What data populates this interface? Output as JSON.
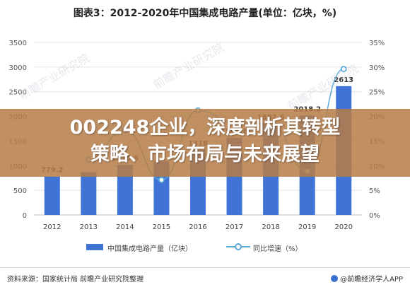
{
  "chart_data": {
    "type": "bar",
    "title": "图表3：2012-2020年中国集成电路产量(单位：亿块，%)",
    "categories": [
      "2012",
      "2013",
      "2014",
      "2015",
      "2016",
      "2017",
      "2018",
      "2019",
      "2020"
    ],
    "series": [
      {
        "name": "中国集成电路产量（亿块）",
        "type": "bar",
        "axis": "left",
        "color": "#3f73d6",
        "values": [
          779.2,
          866.5,
          1015.5,
          1087.2,
          1318.0,
          1564.6,
          1852.6,
          2018.2,
          2613
        ],
        "labels": [
          "779.2",
          "",
          "1015.5",
          "",
          "1318",
          "1564.6",
          "1852.6",
          "2018.2",
          "2613"
        ]
      },
      {
        "name": "同比增速（%）",
        "type": "line",
        "axis": "right",
        "color": "#5aa8d8",
        "values": [
          null,
          11.2,
          17.2,
          7.1,
          21.2,
          18.7,
          18.4,
          8.9,
          29.6
        ]
      }
    ],
    "y_left": {
      "min": 0,
      "max": 3500,
      "ticks": [
        "0",
        "500",
        "1000",
        "1500",
        "2000",
        "2500",
        "3000",
        "3500"
      ]
    },
    "y_right": {
      "min": 0,
      "max": 35,
      "ticks": [
        "0%",
        "5%",
        "10%",
        "15%",
        "20%",
        "25%",
        "30%",
        "35%"
      ]
    },
    "grid": true,
    "legend": "bottom"
  },
  "headline": {
    "line1": "002248企业，深度剖析其转型",
    "line2": "策略、市场布局与未来展望"
  },
  "legend": {
    "bar_label": "中国集成电路产量（亿块）",
    "line_label": "同比增速（%）"
  },
  "footer": {
    "source": "资料来源：国家统计局 前瞻产业研究院整理",
    "brand": "@前瞻经济学人APP"
  },
  "watermark": "前瞻产业研究院"
}
